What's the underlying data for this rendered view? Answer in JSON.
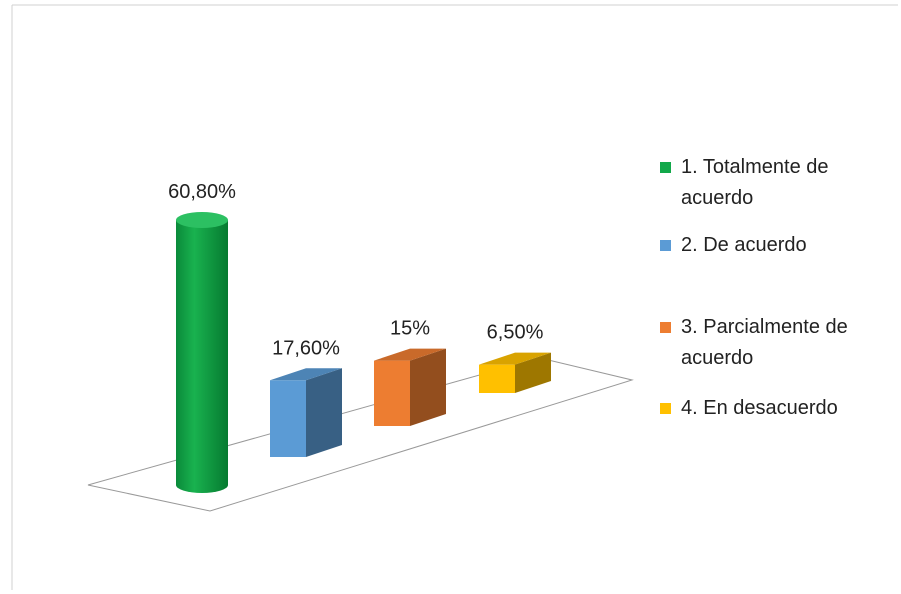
{
  "chart_data": {
    "type": "bar3d",
    "categories": [
      "1. Totalmente de acuerdo",
      "2. De acuerdo",
      "3. Parcialmente de acuerdo",
      "4. En desacuerdo"
    ],
    "values": [
      60.8,
      17.6,
      15,
      6.5
    ],
    "value_labels": [
      "60,80%",
      "17,60%",
      "15%",
      "6,50%"
    ],
    "colors": [
      "#12a84a",
      "#5b9bd5",
      "#ed7d31",
      "#ffc000"
    ],
    "shapes": [
      "cylinder",
      "box",
      "box",
      "box"
    ]
  }
}
